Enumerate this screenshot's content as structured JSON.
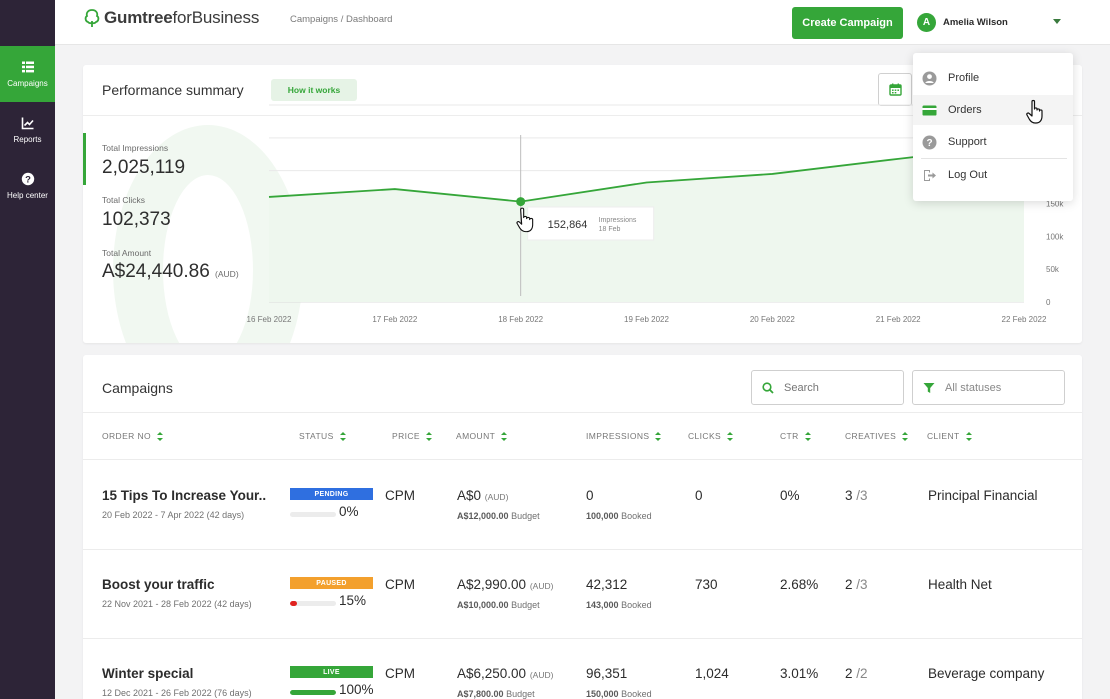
{
  "sidebar": {
    "items": [
      {
        "label": "Campaigns",
        "icon": "campaigns-icon",
        "active": true
      },
      {
        "label": "Reports",
        "icon": "reports-icon",
        "active": false
      },
      {
        "label": "Help center",
        "icon": "help-icon",
        "active": false
      }
    ]
  },
  "header": {
    "logo_brand": "Gumtree",
    "logo_suffix": "forBusiness",
    "breadcrumb": "Campaigns / Dashboard",
    "create_label": "Create Campaign",
    "avatar_initial": "A",
    "user_name": "Amelia Wilson"
  },
  "performance": {
    "title": "Performance summary",
    "how_label": "How it works",
    "metrics": [
      {
        "label": "Total Impressions",
        "value": "2,025,119"
      },
      {
        "label": "Total Clicks",
        "value": "102,373"
      },
      {
        "label": "Total Amount",
        "value": "A$24,440.86",
        "unit": "(AUD)"
      }
    ]
  },
  "chart_data": {
    "type": "area",
    "categories": [
      "16 Feb 2022",
      "17 Feb 2022",
      "18 Feb 2022",
      "19 Feb 2022",
      "20 Feb 2022",
      "21 Feb 2022",
      "22 Feb 2022"
    ],
    "series": [
      {
        "name": "Impressions",
        "values": [
          160000,
          172000,
          152864,
          182000,
          195000,
          218000,
          240000
        ]
      }
    ],
    "ylim": [
      0,
      300000
    ],
    "y_ticks": [
      "0",
      "50k",
      "100k",
      "150k"
    ],
    "gridlines": true,
    "tooltip": {
      "value": "152,864",
      "label": "Impressions",
      "date": "18 Feb"
    }
  },
  "campaigns": {
    "title": "Campaigns",
    "search_placeholder": "Search",
    "status_filter": "All statuses",
    "columns": [
      "ORDER NO",
      "STATUS",
      "PRICE",
      "AMOUNT",
      "IMPRESSIONS",
      "CLICKS",
      "CTR",
      "CREATIVES",
      "CLIENT"
    ],
    "rows": [
      {
        "name": "15 Tips To Increase Your..",
        "dates": "20 Feb 2022 - 7 Apr 2022 (42 days)",
        "status": "PENDING",
        "status_color": "#2f6fe0",
        "progress": 0,
        "progress_color": "#e0e0e0",
        "pct": "0%",
        "price": "CPM",
        "amount": "A$0",
        "amount_unit": "(AUD)",
        "budget": "A$12,000.00",
        "budget_label": "Budget",
        "impressions": "0",
        "booked": "100,000",
        "booked_label": "Booked",
        "clicks": "0",
        "ctr": "0%",
        "creatives": "3",
        "creatives_total": "/3",
        "client": "Principal Financial"
      },
      {
        "name": "Boost your traffic",
        "dates": "22 Nov 2021 - 28 Feb 2022 (42 days)",
        "status": "PAUSED",
        "status_color": "#f3a02d",
        "progress": 0.15,
        "progress_color": "#e0231f",
        "pct": "15%",
        "price": "CPM",
        "amount": "A$2,990.00",
        "amount_unit": "(AUD)",
        "budget": "A$10,000.00",
        "budget_label": "Budget",
        "impressions": "42,312",
        "booked": "143,000",
        "booked_label": "Booked",
        "clicks": "730",
        "ctr": "2.68%",
        "creatives": "2",
        "creatives_total": "/3",
        "client": "Health Net"
      },
      {
        "name": "Winter special",
        "dates": "12 Dec 2021 - 26 Feb 2022 (76 days)",
        "status": "LIVE",
        "status_color": "#35a639",
        "progress": 1,
        "progress_color": "#35a639",
        "pct": "100%",
        "price": "CPM",
        "amount": "A$6,250.00",
        "amount_unit": "(AUD)",
        "budget": "A$7,800.00",
        "budget_label": "Budget",
        "impressions": "96,351",
        "booked": "150,000",
        "booked_label": "Booked",
        "clicks": "1,024",
        "ctr": "3.01%",
        "creatives": "2",
        "creatives_total": "/2",
        "client": "Beverage company"
      }
    ]
  },
  "user_menu": {
    "items": [
      {
        "label": "Profile",
        "icon": "profile-icon"
      },
      {
        "label": "Orders",
        "icon": "orders-icon"
      },
      {
        "label": "Support",
        "icon": "support-icon"
      },
      {
        "label": "Log Out",
        "icon": "logout-icon"
      }
    ]
  },
  "colors": {
    "brand": "#35a639",
    "sidebar": "#2d2437"
  }
}
